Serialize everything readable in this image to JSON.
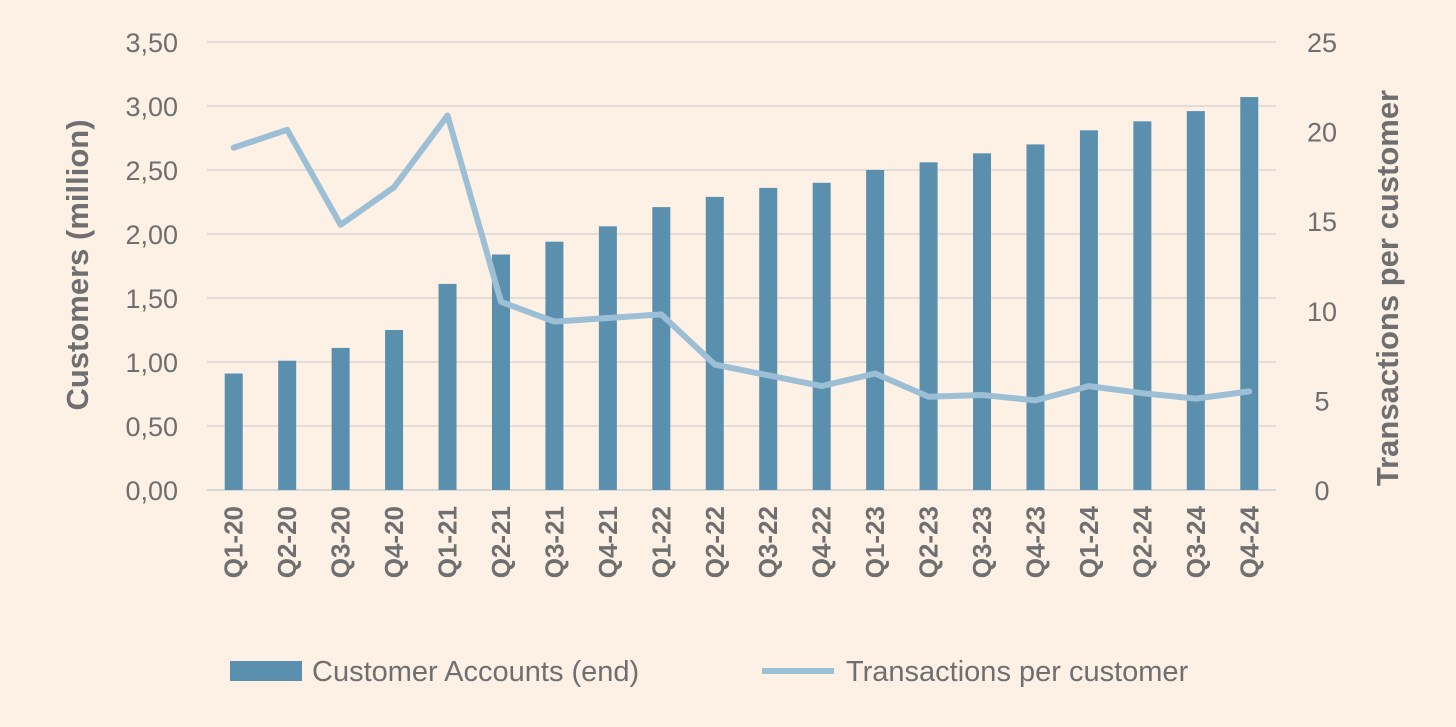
{
  "chart_data": {
    "type": "bar",
    "categories": [
      "Q1-20",
      "Q2-20",
      "Q3-20",
      "Q4-20",
      "Q1-21",
      "Q2-21",
      "Q3-21",
      "Q4-21",
      "Q1-22",
      "Q2-22",
      "Q3-22",
      "Q4-22",
      "Q1-23",
      "Q2-23",
      "Q3-23",
      "Q4-23",
      "Q1-24",
      "Q2-24",
      "Q3-24",
      "Q4-24"
    ],
    "series": [
      {
        "name": "Customer Accounts (end)",
        "type": "bar",
        "axis": "left",
        "color": "#5b8fae",
        "values": [
          0.91,
          1.01,
          1.11,
          1.25,
          1.61,
          1.84,
          1.94,
          2.06,
          2.21,
          2.29,
          2.36,
          2.4,
          2.5,
          2.56,
          2.63,
          2.7,
          2.81,
          2.88,
          2.96,
          3.07
        ]
      },
      {
        "name": "Transactions per customer",
        "type": "line",
        "axis": "right",
        "color": "#9dbfd6",
        "values": [
          19.1,
          20.1,
          14.8,
          16.9,
          20.9,
          10.5,
          9.4,
          9.6,
          9.8,
          7.0,
          6.4,
          5.8,
          6.5,
          5.2,
          5.3,
          5.0,
          5.8,
          5.4,
          5.1,
          5.5
        ]
      }
    ],
    "ylabel": "Customers (million)",
    "ylabel_right": "Transactions per customer",
    "ylim": [
      0,
      3.5
    ],
    "ylim_right": [
      0,
      25
    ],
    "yticks": [
      "0,00",
      "0,50",
      "1,00",
      "1,50",
      "2,00",
      "2,50",
      "3,00",
      "3,50"
    ],
    "yticks_right": [
      "0",
      "5",
      "10",
      "15",
      "20",
      "25"
    ],
    "grid": true,
    "legend_position": "bottom"
  }
}
